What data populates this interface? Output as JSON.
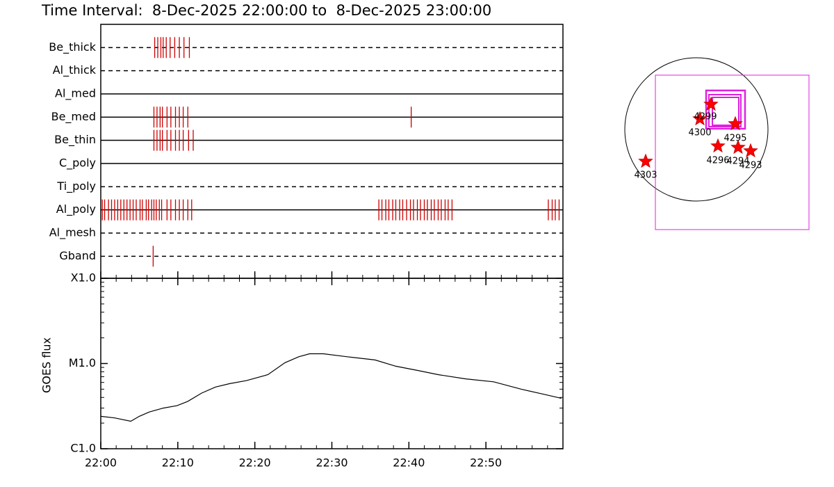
{
  "chart_data": [
    {
      "type": "timeline",
      "title": "Time Interval:  8-Dec-2025 22:00:00 to  8-Dec-2025 23:00:00",
      "xlim": [
        0,
        60
      ],
      "color": "#cc0000",
      "rows": [
        {
          "name": "Be_thick",
          "line_style": "dashed",
          "events": [
            7.0,
            7.4,
            7.8,
            8.1,
            8.5,
            9.0,
            9.6,
            10.2,
            10.8,
            11.5
          ]
        },
        {
          "name": "Al_thick",
          "line_style": "dashed",
          "events": []
        },
        {
          "name": "Al_med",
          "line_style": "solid",
          "events": []
        },
        {
          "name": "Be_med",
          "line_style": "solid",
          "events": [
            6.9,
            7.3,
            7.7,
            8.0,
            8.6,
            9.1,
            9.7,
            10.2,
            10.7,
            11.3,
            40.3
          ]
        },
        {
          "name": "Be_thin",
          "line_style": "solid",
          "events": [
            6.9,
            7.3,
            7.7,
            8.0,
            8.6,
            9.1,
            9.7,
            10.2,
            10.7,
            11.4,
            12.0
          ]
        },
        {
          "name": "C_poly",
          "line_style": "solid",
          "events": []
        },
        {
          "name": "Ti_poly",
          "line_style": "dashed",
          "events": []
        },
        {
          "name": "Al_poly",
          "line_style": "solid",
          "events": [
            0.2,
            0.5,
            1.0,
            1.4,
            1.8,
            2.2,
            2.6,
            3.0,
            3.4,
            3.8,
            4.2,
            4.6,
            5.1,
            5.4,
            5.9,
            6.2,
            6.6,
            6.9,
            7.2,
            7.6,
            7.9,
            8.6,
            9.1,
            9.7,
            10.2,
            10.7,
            11.3,
            11.8,
            36.1,
            36.5,
            37.0,
            37.4,
            37.9,
            38.3,
            38.8,
            39.2,
            39.7,
            40.2,
            40.6,
            41.1,
            41.5,
            42.0,
            42.4,
            42.9,
            43.3,
            43.8,
            44.2,
            44.7,
            45.1,
            45.6,
            58.1,
            58.6,
            59.0,
            59.5
          ]
        },
        {
          "name": "Al_mesh",
          "line_style": "dashed",
          "events": []
        },
        {
          "name": "Gband",
          "line_style": "dashed",
          "events": [
            6.8
          ]
        }
      ]
    },
    {
      "type": "line",
      "y_label": "GOES flux",
      "color": "#000000",
      "log_scale": true,
      "x": [
        0,
        1.8,
        3.9,
        5.0,
        6.3,
        8.1,
        9.9,
        11.3,
        13.1,
        14.9,
        16.7,
        18.9,
        21.7,
        23.9,
        25.7,
        27.1,
        28.9,
        32.0,
        35.6,
        38.3,
        41.1,
        43.8,
        47.4,
        51.0,
        54.6,
        57.3,
        59.8
      ],
      "values": [
        2.4e-06,
        2.3e-06,
        2.1e-06,
        2.4e-06,
        2.7e-06,
        3e-06,
        3.2e-06,
        3.6e-06,
        4.5e-06,
        5.3e-06,
        5.8e-06,
        6.3e-06,
        7.4e-06,
        1.02e-05,
        1.2e-05,
        1.3e-05,
        1.3e-05,
        1.2e-05,
        1.1e-05,
        9.3e-06,
        8.3e-06,
        7.4e-06,
        6.6e-06,
        6.1e-06,
        5e-06,
        4.4e-06,
        3.9e-06
      ],
      "xlim": [
        0,
        60
      ],
      "xticks": [
        {
          "value": 0,
          "label": "22:00"
        },
        {
          "value": 10,
          "label": "22:10"
        },
        {
          "value": 20,
          "label": "22:20"
        },
        {
          "value": 30,
          "label": "22:30"
        },
        {
          "value": 40,
          "label": "22:40"
        },
        {
          "value": 50,
          "label": "22:50"
        }
      ],
      "ylim": [
        1e-06,
        0.0001
      ],
      "yticks": [
        {
          "value": 1e-06,
          "label": "C1.0"
        },
        {
          "value": 1e-05,
          "label": "M1.0"
        },
        {
          "value": 0.0001,
          "label": "X1.0"
        }
      ]
    }
  ],
  "map": {
    "region_labels": [
      "4299",
      "4300",
      "4295",
      "4296",
      "4294",
      "4293",
      "4303"
    ]
  }
}
